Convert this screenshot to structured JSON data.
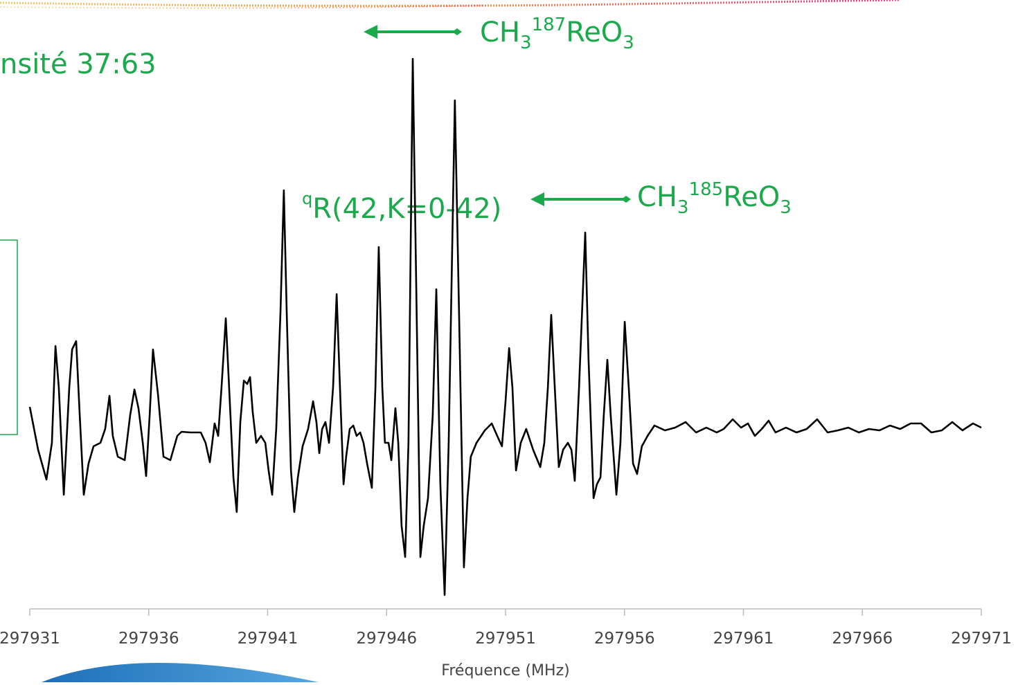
{
  "chart_data": {
    "type": "line",
    "annotations": {
      "ratio": "nsité 37:63",
      "transition": [
        "q",
        "R(42,K=0-42)"
      ],
      "isotopologue_187": [
        "CH",
        "3",
        "187",
        "ReO",
        "3"
      ],
      "isotopologue_185": [
        "CH",
        "3",
        "185",
        "ReO",
        "3"
      ]
    },
    "xlabel": "Fréquence (MHz)",
    "xlim": [
      297931,
      297971
    ],
    "xticks": [
      297931,
      297936,
      297941,
      297946,
      297951,
      297956,
      297961,
      297966,
      297971
    ],
    "color": "#000000",
    "x": [
      297931.0,
      297931.35,
      297931.7,
      297931.93,
      297932.08,
      297932.22,
      297932.43,
      297932.66,
      297932.78,
      297932.95,
      297933.1,
      297933.27,
      297933.47,
      297933.68,
      297933.97,
      297934.17,
      297934.35,
      297934.49,
      297934.7,
      297934.99,
      297935.22,
      297935.4,
      297935.57,
      297935.75,
      297935.89,
      297936.04,
      297936.18,
      297936.39,
      297936.62,
      297936.91,
      297937.2,
      297937.38,
      297937.75,
      297938.19,
      297938.39,
      297938.57,
      297938.77,
      297938.92,
      297939.06,
      297939.24,
      297939.38,
      297939.56,
      297939.7,
      297939.85,
      297940.0,
      297940.14,
      297940.26,
      297940.37,
      297940.52,
      297940.72,
      297940.9,
      297941.04,
      297941.19,
      297941.36,
      297941.54,
      297941.68,
      297941.8,
      297941.98,
      297942.12,
      297942.27,
      297942.47,
      297942.7,
      297942.91,
      297943.05,
      297943.17,
      297943.29,
      297943.43,
      297943.58,
      297943.75,
      297943.9,
      297944.04,
      297944.19,
      297944.3,
      297944.45,
      297944.6,
      297944.74,
      297944.89,
      297945.03,
      297945.18,
      297945.38,
      297945.53,
      297945.67,
      297945.82,
      297945.93,
      297946.08,
      297946.2,
      297946.37,
      297946.49,
      297946.63,
      297946.78,
      297946.92,
      297947.1,
      297947.24,
      297947.42,
      297947.56,
      297947.74,
      297947.94,
      297948.09,
      297948.26,
      297948.44,
      297948.61,
      297948.87,
      297949.05,
      297949.25,
      297949.4,
      297949.54,
      297949.78,
      297950.13,
      297950.42,
      297950.65,
      297950.85,
      297951.0,
      297951.15,
      297951.29,
      297951.44,
      297951.64,
      297951.87,
      297952.16,
      297952.46,
      297952.63,
      297952.78,
      297952.92,
      297953.07,
      297953.24,
      297953.42,
      297953.62,
      297953.77,
      297953.91,
      297954.09,
      297954.35,
      297954.49,
      297954.7,
      297954.84,
      297954.99,
      297955.13,
      297955.28,
      297955.42,
      297955.66,
      297955.83,
      297956.01,
      297956.18,
      297956.36,
      297956.53,
      297956.73,
      297956.97,
      297957.26,
      297957.7,
      297958.13,
      297958.57,
      297959.01,
      297959.44,
      297959.88,
      297960.17,
      297960.55,
      297960.9,
      297961.19,
      297961.48,
      297961.77,
      297962.06,
      297962.35,
      297962.79,
      297963.23,
      297963.66,
      297964.1,
      297964.54,
      297964.97,
      297965.41,
      297965.85,
      297966.28,
      297966.72,
      297967.16,
      297967.59,
      297968.03,
      297968.47,
      297968.9,
      297969.34,
      297969.78,
      297970.21,
      297970.65,
      297971.0
    ],
    "values": [
      0.32,
      -0.3,
      -0.73,
      -0.2,
      1.2,
      0.6,
      -0.95,
      0.6,
      1.15,
      1.27,
      0.2,
      -0.95,
      -0.5,
      -0.25,
      -0.2,
      0.0,
      0.48,
      -0.1,
      -0.4,
      -0.45,
      0.2,
      0.57,
      0.3,
      -0.2,
      -0.68,
      0.2,
      1.15,
      0.5,
      -0.4,
      -0.45,
      -0.1,
      -0.04,
      -0.05,
      -0.05,
      -0.2,
      -0.48,
      0.08,
      -0.1,
      0.6,
      1.6,
      0.6,
      -0.7,
      -1.2,
      0.1,
      0.7,
      0.65,
      0.75,
      0.25,
      -0.2,
      -0.1,
      -0.2,
      -0.6,
      -0.95,
      0.0,
      1.7,
      3.45,
      1.7,
      -0.6,
      -1.2,
      -0.7,
      -0.25,
      0.0,
      0.4,
      0.1,
      -0.35,
      0.0,
      0.1,
      -0.2,
      0.6,
      1.95,
      0.6,
      -0.8,
      -0.4,
      0.0,
      0.05,
      -0.1,
      -0.05,
      -0.2,
      -0.5,
      -0.85,
      0.6,
      2.63,
      0.6,
      -0.2,
      -0.2,
      -0.45,
      0.3,
      -0.2,
      -1.4,
      -1.85,
      -0.2,
      5.35,
      2.2,
      -1.85,
      -1.4,
      -1.0,
      0.2,
      2.02,
      -0.8,
      -2.4,
      -0.2,
      4.75,
      1.6,
      -2.0,
      -1.0,
      -0.4,
      -0.2,
      -0.02,
      0.08,
      -0.1,
      -0.25,
      0.4,
      1.17,
      0.6,
      -0.6,
      -0.2,
      0.0,
      -0.3,
      -0.55,
      -0.2,
      0.6,
      1.65,
      0.6,
      -0.55,
      -0.3,
      -0.2,
      -0.3,
      -0.75,
      0.6,
      2.84,
      1.0,
      -1.0,
      -0.8,
      -0.7,
      0.2,
      1.0,
      0.2,
      -0.95,
      -0.2,
      1.55,
      0.6,
      -0.5,
      -0.65,
      -0.25,
      -0.1,
      0.05,
      -0.02,
      0.02,
      0.1,
      -0.05,
      0.02,
      -0.05,
      0.0,
      0.14,
      0.02,
      0.08,
      -0.1,
      0.0,
      0.12,
      -0.05,
      0.02,
      -0.05,
      0.0,
      0.14,
      -0.05,
      -0.02,
      0.02,
      -0.05,
      0.0,
      -0.02,
      0.05,
      0.0,
      0.08,
      0.08,
      -0.05,
      -0.02,
      0.1,
      -0.02,
      0.08,
      0.02
    ]
  }
}
